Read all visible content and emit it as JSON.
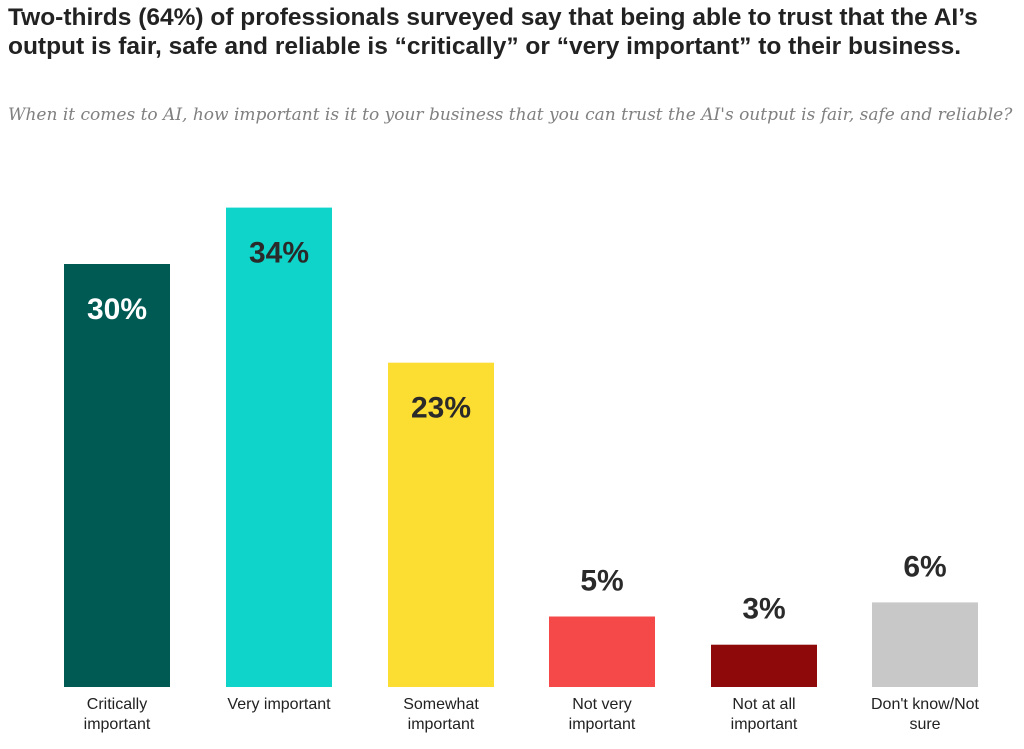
{
  "chart_data": {
    "type": "bar",
    "title": "Two-thirds (64%) of professionals surveyed say that being able to trust that the AI’s output is fair, safe and reliable is “critically” or “very important” to their business.",
    "subtitle": "When it comes to AI, how important is it to your business that you can trust the AI's output is fair, safe and reliable?",
    "categories": [
      [
        "Critically",
        "important"
      ],
      [
        "Very important"
      ],
      [
        "Somewhat",
        "important"
      ],
      [
        "Not very",
        "important"
      ],
      [
        "Not at all",
        "important"
      ],
      [
        "Don't know/Not",
        "sure"
      ]
    ],
    "values": [
      30,
      34,
      23,
      5,
      3,
      6
    ],
    "data_labels": [
      "30%",
      "34%",
      "23%",
      "5%",
      "3%",
      "6%"
    ],
    "colors": [
      "#005a54",
      "#0fd4c9",
      "#fcdd32",
      "#f54848",
      "#8e0a0a",
      "#c8c8c8"
    ],
    "label_position": [
      "inside",
      "inside",
      "inside",
      "above",
      "above",
      "above"
    ],
    "label_colors": [
      "#ffffff",
      "#2a2a2a",
      "#2a2a2a",
      "#2a2a2a",
      "#2a2a2a",
      "#2a2a2a"
    ],
    "ylim": [
      0,
      34
    ],
    "xlabel": "",
    "ylabel": "",
    "grid": false,
    "legend": "none"
  }
}
